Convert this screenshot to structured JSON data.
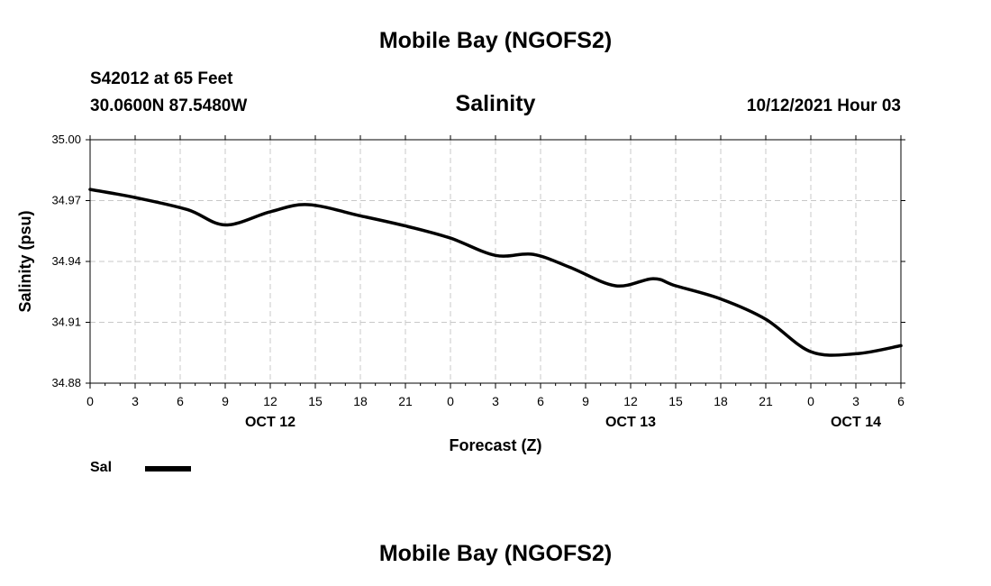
{
  "header": {
    "title": "Mobile Bay (NGOFS2)",
    "station": "S42012 at 65 Feet",
    "coords": "30.0600N  87.5480W",
    "chart_title": "Salinity",
    "timestamp": "10/12/2021 Hour 03"
  },
  "footer": {
    "title": "Mobile Bay (NGOFS2)"
  },
  "legend": {
    "label": "Sal"
  },
  "chart_data": {
    "type": "line",
    "title": "Salinity",
    "xlabel": "Forecast (Z)",
    "ylabel": "Salinity (psu)",
    "ylim": [
      34.88,
      35.0
    ],
    "yticks": [
      "35.00",
      "34.97",
      "34.94",
      "34.91",
      "34.88"
    ],
    "xlim": [
      0,
      54
    ],
    "xtick_labels": [
      "0",
      "3",
      "6",
      "9",
      "12",
      "15",
      "18",
      "21",
      "0",
      "3",
      "6",
      "9",
      "12",
      "15",
      "18",
      "21",
      "0",
      "3",
      "6"
    ],
    "date_labels": [
      {
        "hour": 12,
        "label": "OCT 12"
      },
      {
        "hour": 36,
        "label": "OCT 13"
      },
      {
        "hour": 51,
        "label": "OCT 14"
      }
    ],
    "grid": true,
    "line_color": "#000000",
    "series": [
      {
        "name": "Sal",
        "x": [
          0,
          3,
          6.5,
          9,
          12,
          14.5,
          18,
          21,
          24,
          27,
          29.5,
          32,
          35,
          37.5,
          39,
          42,
          45,
          48,
          51,
          54
        ],
        "y": [
          34.9755,
          34.9715,
          34.9655,
          34.958,
          34.9645,
          34.968,
          34.9625,
          34.9575,
          34.9515,
          34.943,
          34.9435,
          34.937,
          34.928,
          34.9315,
          34.928,
          34.9215,
          34.9115,
          34.8955,
          34.8945,
          34.8985
        ]
      }
    ]
  }
}
